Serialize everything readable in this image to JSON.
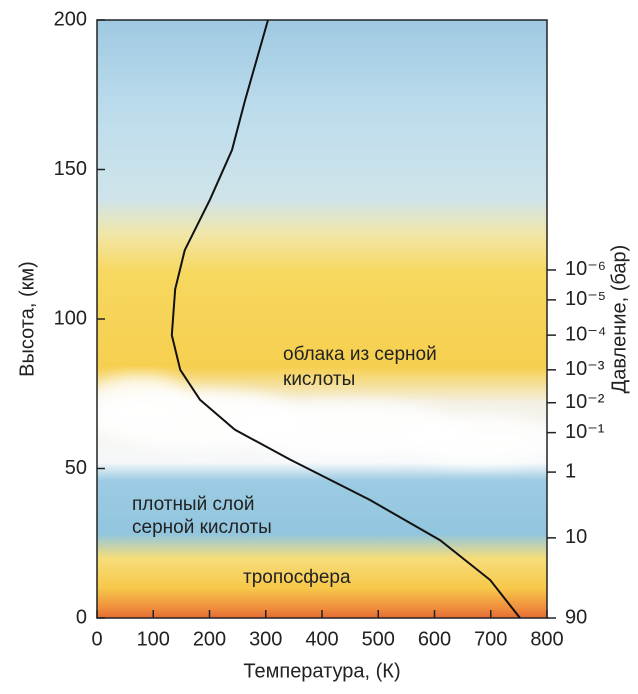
{
  "chart_data": {
    "type": "line",
    "x_label": "Температура, (К)",
    "y_label": "Высота, (км)",
    "xlim": [
      0,
      800
    ],
    "xticks": [
      0,
      100,
      200,
      300,
      400,
      500,
      600,
      700,
      800
    ],
    "ylim": [
      0,
      200
    ],
    "yticks": [
      0,
      50,
      100,
      150,
      200
    ],
    "series": [
      {
        "color": "#111111",
        "x": [
          304,
          263,
          240,
          201,
          156,
          139,
          133,
          148,
          183,
          245,
          343,
          485,
          610,
          699,
          752
        ],
        "values": [
          200,
          173,
          156.5,
          140,
          123,
          110,
          94.6,
          83,
          73,
          63,
          53,
          39.5,
          26,
          12.7,
          0
        ]
      }
    ],
    "pressure_axis": {
      "label": "Давление, (бар)",
      "ticks": [
        {
          "label": "10⁻⁶",
          "altitude_km": 116.4
        },
        {
          "label": "10⁻⁵",
          "altitude_km": 106.4
        },
        {
          "label": "10⁻⁴",
          "altitude_km": 94.6
        },
        {
          "label": "10⁻³",
          "altitude_km": 83
        },
        {
          "label": "10⁻²",
          "altitude_km": 72
        },
        {
          "label": "10⁻¹",
          "altitude_km": 62
        },
        {
          "label": "1",
          "altitude_km": 48.8
        },
        {
          "label": "10",
          "altitude_km": 26.8
        },
        {
          "label": "90",
          "altitude_km": 0
        }
      ]
    },
    "annotations": [
      {
        "lines": [
          "облака из серной",
          "кислоты"
        ]
      },
      {
        "lines": [
          "плотный слой",
          "серной кислоты"
        ]
      },
      {
        "lines": [
          "тропосфера"
        ]
      }
    ]
  }
}
